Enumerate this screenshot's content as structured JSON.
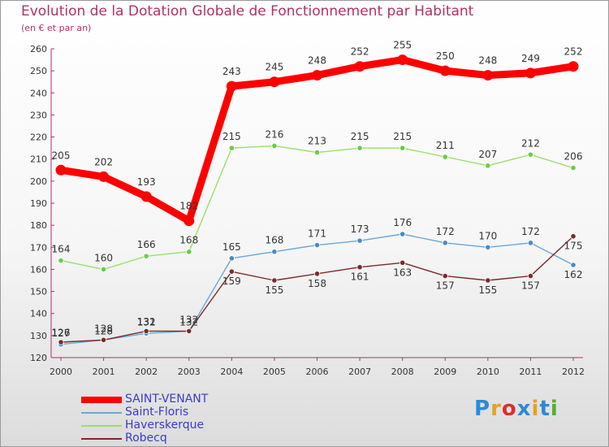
{
  "title": "Evolution de la Dotation Globale de Fonctionnement par Habitant",
  "subtitle": "(en € et par an)",
  "logo": "Proxiti",
  "chart_data": {
    "type": "line",
    "title": "Evolution de la Dotation Globale de Fonctionnement par Habitant",
    "ylabel": "(en € et par an)",
    "xlabel": "",
    "ylim": [
      120,
      260
    ],
    "yticks": [
      120,
      130,
      140,
      150,
      160,
      170,
      180,
      190,
      200,
      210,
      220,
      230,
      240,
      250,
      260
    ],
    "grid": false,
    "x": [
      "2000",
      "2001",
      "2002",
      "2003",
      "2004",
      "2005",
      "2006",
      "2007",
      "2008",
      "2009",
      "2010",
      "2011",
      "2012"
    ],
    "series": [
      {
        "name": "SAINT-VENANT",
        "color": "#ff0000",
        "values": [
          205,
          202,
          193,
          182,
          243,
          245,
          248,
          252,
          255,
          250,
          248,
          249,
          252
        ]
      },
      {
        "name": "Saint-Floris",
        "color": "#6aa8d8",
        "values": [
          126,
          128,
          131,
          132,
          165,
          168,
          171,
          173,
          176,
          172,
          170,
          172,
          162
        ]
      },
      {
        "name": "Haverskerque",
        "color": "#99e06a",
        "values": [
          164,
          160,
          166,
          168,
          215,
          216,
          213,
          215,
          215,
          211,
          207,
          212,
          206
        ]
      },
      {
        "name": "Robecq",
        "color": "#7a2a2a",
        "values": [
          127,
          128,
          132,
          132,
          159,
          155,
          158,
          161,
          163,
          157,
          155,
          157,
          175
        ]
      }
    ],
    "legend_position": "bottom-left"
  }
}
